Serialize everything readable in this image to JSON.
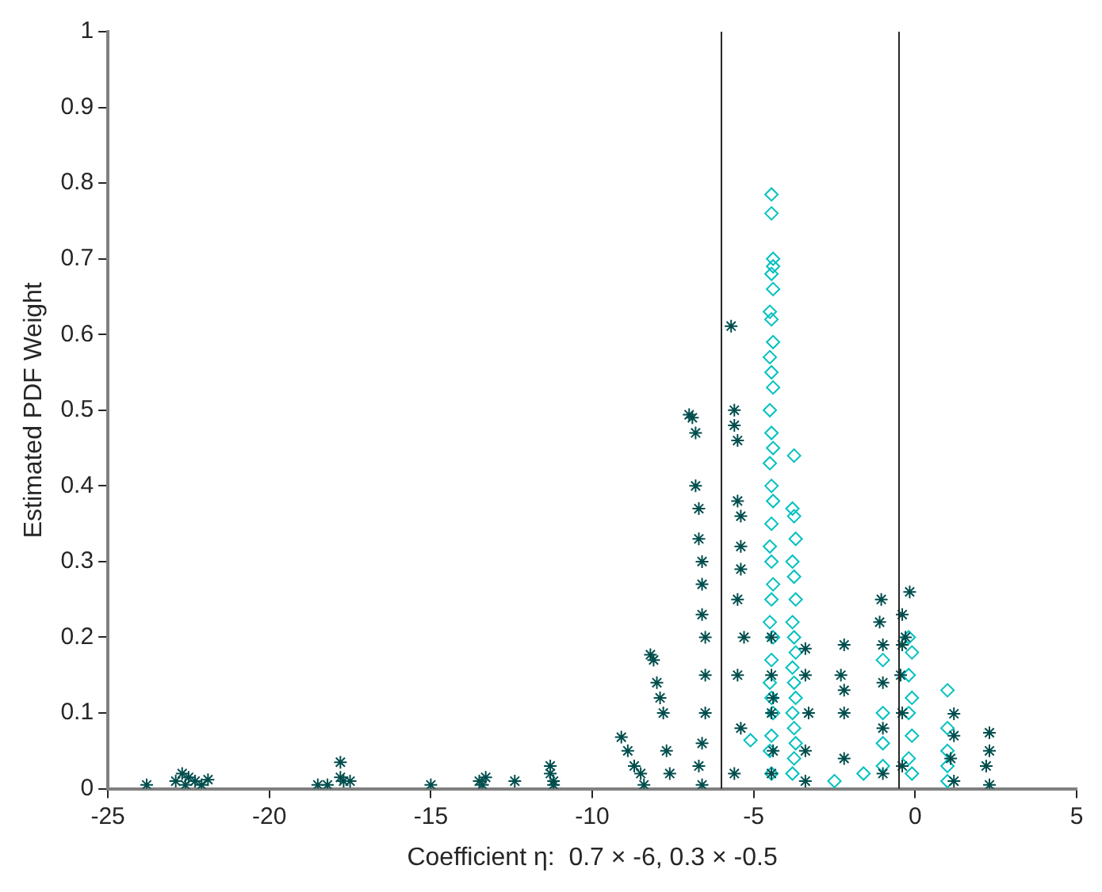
{
  "chart_data": {
    "type": "scatter",
    "xlabel": "Coefficient η:  0.7 × -6, 0.3 × -0.5",
    "ylabel": "Estimated PDF Weight",
    "xlim": [
      -25,
      5
    ],
    "ylim": [
      0,
      1
    ],
    "xticks": [
      -25,
      -20,
      -15,
      -10,
      -5,
      0,
      5
    ],
    "yticks": [
      0,
      0.1,
      0.2,
      0.3,
      0.4,
      0.5,
      0.6,
      0.7,
      0.8,
      0.9,
      1
    ],
    "grid": false,
    "legend": false,
    "ref_lines": [
      {
        "axis": "x",
        "value": -6,
        "color": "#262626"
      },
      {
        "axis": "x",
        "value": -0.5,
        "color": "#262626"
      }
    ],
    "series": [
      {
        "color": "#004d4d",
        "marker": "cross",
        "x": [
          -23.8,
          -22.9,
          -22.7,
          -22.6,
          -22.5,
          -22.3,
          -22.1,
          -21.9,
          -18.5,
          -18.2,
          -17.8,
          -17.8,
          -17.7,
          -17.5,
          -15,
          -13.5,
          -13.4,
          -13.3,
          -12.4,
          -11.3,
          -11.3,
          -11.2,
          -11.2,
          -9.1,
          -8.9,
          -8.7,
          -8.5,
          -8.4,
          -8.2,
          -8.1,
          -8.0,
          -7.9,
          -7.8,
          -7.7,
          -7.6,
          -7.0,
          -6.9,
          -6.8,
          -6.8,
          -6.7,
          -6.7,
          -6.6,
          -6.6,
          -6.6,
          -6.5,
          -6.5,
          -6.5,
          -6.6,
          -6.7,
          -6.6,
          -5.7,
          -5.6,
          -5.6,
          -5.5,
          -5.5,
          -5.4,
          -5.4,
          -5.4,
          -5.5,
          -5.3,
          -5.5,
          -5.4,
          -5.6,
          -4.45,
          -4.45,
          -4.4,
          -4.45,
          -4.4,
          -4.45,
          -3.4,
          -3.4,
          -3.3,
          -3.4,
          -3.4,
          -2.2,
          -2.3,
          -2.2,
          -2.2,
          -2.2,
          -1.05,
          -1.1,
          -1.0,
          -1.0,
          -1.0,
          -1.0,
          -0.4,
          -0.4,
          -0.45,
          -0.4,
          -0.4,
          -0.17,
          -0.3,
          1.2,
          1.2,
          1.1,
          1.2,
          2.3,
          2.3,
          2.2,
          2.3
        ],
        "values": [
          0.005,
          0.01,
          0.02,
          0.005,
          0.015,
          0.01,
          0.005,
          0.012,
          0.005,
          0.005,
          0.035,
          0.015,
          0.01,
          0.01,
          0.005,
          0.01,
          0.005,
          0.015,
          0.01,
          0.03,
          0.02,
          0.01,
          0.005,
          0.068,
          0.05,
          0.03,
          0.02,
          0.005,
          0.177,
          0.17,
          0.14,
          0.12,
          0.1,
          0.05,
          0.02,
          0.494,
          0.49,
          0.47,
          0.4,
          0.37,
          0.33,
          0.3,
          0.27,
          0.23,
          0.2,
          0.15,
          0.1,
          0.06,
          0.03,
          0.005,
          0.611,
          0.5,
          0.48,
          0.46,
          0.38,
          0.36,
          0.32,
          0.29,
          0.25,
          0.2,
          0.15,
          0.08,
          0.02,
          0.2,
          0.15,
          0.12,
          0.1,
          0.05,
          0.02,
          0.185,
          0.15,
          0.1,
          0.05,
          0.01,
          0.19,
          0.15,
          0.13,
          0.1,
          0.04,
          0.25,
          0.22,
          0.19,
          0.14,
          0.08,
          0.02,
          0.23,
          0.19,
          0.15,
          0.1,
          0.03,
          0.26,
          0.2,
          0.099,
          0.07,
          0.04,
          0.01,
          0.074,
          0.05,
          0.03,
          0.005
        ]
      },
      {
        "color": "#00c0c0",
        "marker": "diamond",
        "x": [
          -4.45,
          -4.45,
          -4.4,
          -4.4,
          -4.45,
          -4.4,
          -4.5,
          -4.45,
          -4.4,
          -4.5,
          -4.45,
          -4.4,
          -4.5,
          -4.45,
          -4.4,
          -4.5,
          -4.45,
          -4.4,
          -4.45,
          -4.5,
          -4.45,
          -4.4,
          -4.45,
          -4.5,
          -4.4,
          -4.45,
          -4.5,
          -4.45,
          -4.4,
          -4.45,
          -4.5,
          -4.45,
          -3.75,
          -3.8,
          -3.75,
          -3.7,
          -3.8,
          -3.75,
          -3.7,
          -3.8,
          -3.75,
          -3.7,
          -3.8,
          -3.75,
          -3.7,
          -3.8,
          -3.75,
          -3.7,
          -3.75,
          -3.8,
          -5.1,
          -2.5,
          -1.0,
          -1.0,
          -1.0,
          -1.0,
          -1.6,
          -0.2,
          -0.1,
          -0.2,
          -0.1,
          -0.2,
          -0.1,
          -0.2,
          -0.1,
          1.0,
          1.0,
          1.0,
          1.0,
          1.0
        ],
        "values": [
          0.785,
          0.76,
          0.7,
          0.69,
          0.68,
          0.66,
          0.63,
          0.62,
          0.59,
          0.57,
          0.55,
          0.53,
          0.5,
          0.47,
          0.45,
          0.43,
          0.4,
          0.38,
          0.35,
          0.32,
          0.3,
          0.27,
          0.25,
          0.22,
          0.2,
          0.17,
          0.14,
          0.12,
          0.1,
          0.07,
          0.05,
          0.02,
          0.44,
          0.37,
          0.36,
          0.33,
          0.3,
          0.28,
          0.25,
          0.22,
          0.2,
          0.18,
          0.16,
          0.14,
          0.12,
          0.1,
          0.08,
          0.06,
          0.04,
          0.02,
          0.064,
          0.01,
          0.17,
          0.1,
          0.06,
          0.03,
          0.02,
          0.2,
          0.18,
          0.15,
          0.12,
          0.1,
          0.07,
          0.04,
          0.02,
          0.13,
          0.08,
          0.05,
          0.03,
          0.01
        ]
      }
    ]
  }
}
